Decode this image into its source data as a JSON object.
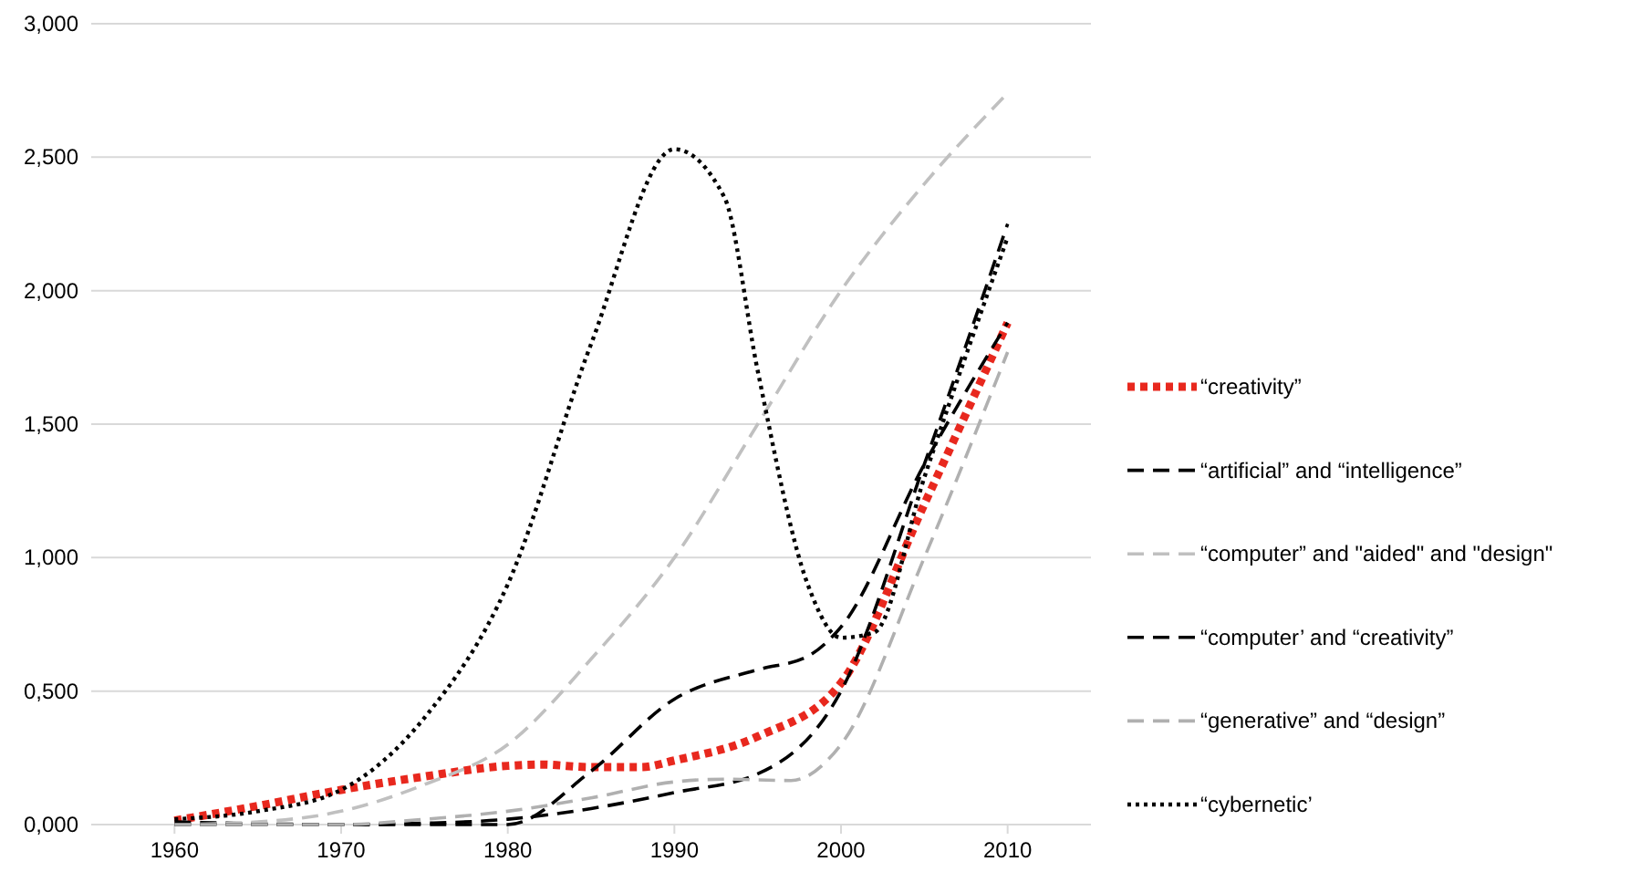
{
  "chart_data": {
    "type": "line",
    "xlim": [
      1955,
      2015
    ],
    "xticks": [
      1960,
      1970,
      1980,
      1990,
      2000,
      2010
    ],
    "ylim": [
      0,
      3
    ],
    "yticks": [
      {
        "value": 0,
        "label": "0,000"
      },
      {
        "value": 0.5,
        "label": "0,500"
      },
      {
        "value": 1,
        "label": "1,000"
      },
      {
        "value": 1.5,
        "label": "1,500"
      },
      {
        "value": 2,
        "label": "2,000"
      },
      {
        "value": 2.5,
        "label": "2,500"
      },
      {
        "value": 3,
        "label": "3,000"
      }
    ],
    "grid": "y",
    "legend": "right",
    "marker": "none",
    "series": [
      {
        "name": "“creativity”",
        "color": "#e8281e",
        "line_style": "dotted",
        "x": [
          1960,
          1965,
          1970,
          1975,
          1980,
          1982,
          1985,
          1988,
          1990,
          1995,
          2000,
          2005,
          2010
        ],
        "values": [
          0.015,
          0.07,
          0.13,
          0.18,
          0.22,
          0.225,
          0.215,
          0.215,
          0.24,
          0.33,
          0.53,
          1.2,
          1.88
        ]
      },
      {
        "name": "“artificial”  and “intelligence”",
        "color": "#000000",
        "line_style": "dashed",
        "x": [
          1960,
          1970,
          1980,
          1985,
          1990,
          1995,
          1998,
          2000,
          2005,
          2010
        ],
        "values": [
          0.01,
          0,
          0,
          0.2,
          0.47,
          0.58,
          0.63,
          0.74,
          1.35,
          1.88
        ]
      },
      {
        "name": "“computer”  and \"aided\" and \"design\"",
        "color": "#c0c0c0",
        "line_style": "dashed",
        "x": [
          1960,
          1965,
          1970,
          1975,
          1980,
          1985,
          1990,
          1995,
          2000,
          2005,
          2010
        ],
        "values": [
          0,
          0.01,
          0.05,
          0.15,
          0.3,
          0.62,
          1.0,
          1.5,
          2.0,
          2.4,
          2.74
        ]
      },
      {
        "name": "“computer’ and “creativity”",
        "color": "#000000",
        "line_style": "dashed",
        "x": [
          1960,
          1970,
          1975,
          1980,
          1985,
          1990,
          1995,
          2000,
          2005,
          2010
        ],
        "values": [
          0,
          0,
          0.005,
          0.02,
          0.06,
          0.12,
          0.19,
          0.5,
          1.35,
          2.25
        ]
      },
      {
        "name": "“generative” and “design”",
        "color": "#b0b0b0",
        "line_style": "dashed",
        "x": [
          1960,
          1970,
          1975,
          1980,
          1985,
          1990,
          1993,
          1997,
          2000,
          2005,
          2010
        ],
        "values": [
          0,
          0,
          0.02,
          0.05,
          0.1,
          0.16,
          0.17,
          0.165,
          0.3,
          1.0,
          1.77
        ]
      },
      {
        "name": "“cybernetic’",
        "color": "#000000",
        "line_style": "dotted",
        "x": [
          1960,
          1965,
          1970,
          1975,
          1980,
          1985,
          1990,
          1993,
          1995,
          1998,
          2000,
          2002,
          2005,
          2010
        ],
        "values": [
          0.02,
          0.05,
          0.13,
          0.4,
          0.9,
          1.8,
          2.53,
          2.35,
          1.7,
          0.9,
          0.7,
          0.72,
          1.3,
          2.2
        ]
      }
    ]
  }
}
